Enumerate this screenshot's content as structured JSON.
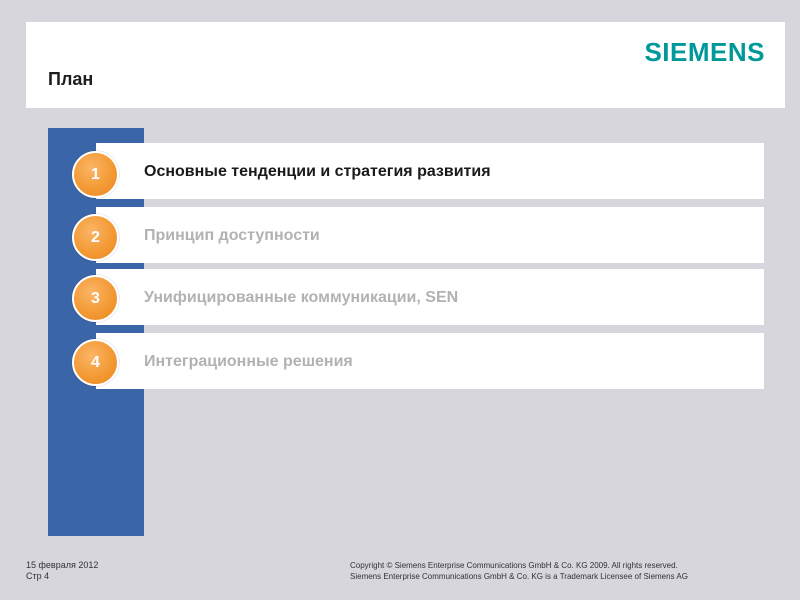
{
  "header": {
    "title": "План",
    "logo_text": "SIEMENS",
    "logo_color": "#00999A"
  },
  "agenda": {
    "items": [
      {
        "number": "1",
        "label": "Основные тенденции и стратегия развития",
        "active": true
      },
      {
        "number": "2",
        "label": "Принцип доступности",
        "active": false
      },
      {
        "number": "3",
        "label": "Унифицированные коммуникации, SEN",
        "active": false
      },
      {
        "number": "4",
        "label": "Интеграционные решения",
        "active": false
      }
    ]
  },
  "colors": {
    "background": "#D6D6DC",
    "blue_bar": "#3A65A8",
    "badge_orange": "#F39A35",
    "active_text": "#1A1A1A",
    "inactive_text": "#B2B2B2"
  },
  "footer": {
    "date": "15 февраля 2012",
    "page": "Стр 4",
    "copyright_line1": "Copyright © Siemens Enterprise Communications GmbH & Co. KG 2009. All rights reserved.",
    "copyright_line2": "Siemens Enterprise Communications GmbH & Co. KG is a Trademark Licensee of Siemens AG"
  }
}
